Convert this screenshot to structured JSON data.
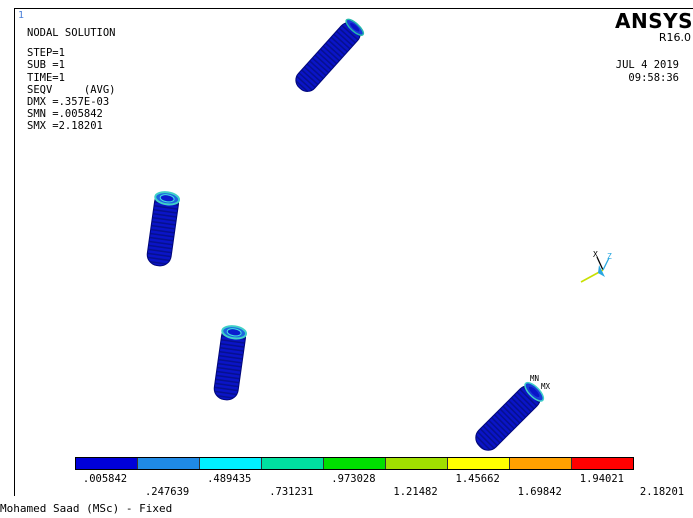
{
  "window_number": "1",
  "info_lines": {
    "title": "NODAL SOLUTION",
    "step": "STEP=1",
    "sub": "SUB =1",
    "time": "TIME=1",
    "seqv": "SEQV     (AVG)",
    "dmx": "DMX =.357E-03",
    "smn": "SMN =.005842",
    "smx": "SMX =2.18201"
  },
  "brand": {
    "name": "ANSYS",
    "version": "R16.0"
  },
  "datetime": {
    "date": "JUL  4 2019",
    "time": "09:58:36"
  },
  "triad": {
    "x_label": "X",
    "z_label": "Z",
    "colors": {
      "x": "#000000",
      "z": "#2aa7e0",
      "y": "#c8e000"
    }
  },
  "markers": {
    "min": "MN",
    "max": "MX"
  },
  "legend": {
    "colors": [
      "#0000d8",
      "#1f8ae6",
      "#00f0ff",
      "#00e0a0",
      "#00e000",
      "#a0e000",
      "#ffff00",
      "#ffa000",
      "#ff0000"
    ],
    "top_labels": [
      ".005842",
      ".489435",
      ".973028",
      "1.45662",
      "1.94021"
    ],
    "bottom_labels": [
      ".247639",
      ".731231",
      "1.21482",
      "1.69842",
      "2.18201"
    ]
  },
  "footer_title": "Mohamed Saad (MSc) - Fixed"
}
